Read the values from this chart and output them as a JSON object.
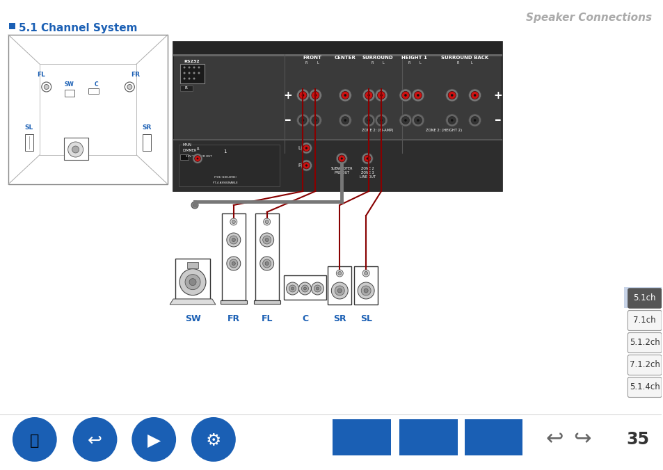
{
  "title": "Speaker Connections",
  "section_title": "5.1 Channel System",
  "bg_color": "#ffffff",
  "title_color": "#aaaaaa",
  "section_color": "#000000",
  "blue_color": "#1a5fb4",
  "sidebar_buttons": [
    "5.1ch",
    "7.1ch",
    "5.1.2ch",
    "7.1.2ch",
    "5.1.4ch"
  ],
  "active_button": "5.1ch",
  "active_btn_bg": "#555555",
  "inactive_btn_bg": "#ffffff",
  "speaker_labels": [
    "SW",
    "FR",
    "FL",
    "C",
    "SR",
    "SL"
  ],
  "page_number": "35",
  "wire_red": "#880000",
  "wire_dark": "#222222",
  "receiver_bg": "#444444",
  "connector_red": "#cc2222",
  "connector_grey": "#555555"
}
